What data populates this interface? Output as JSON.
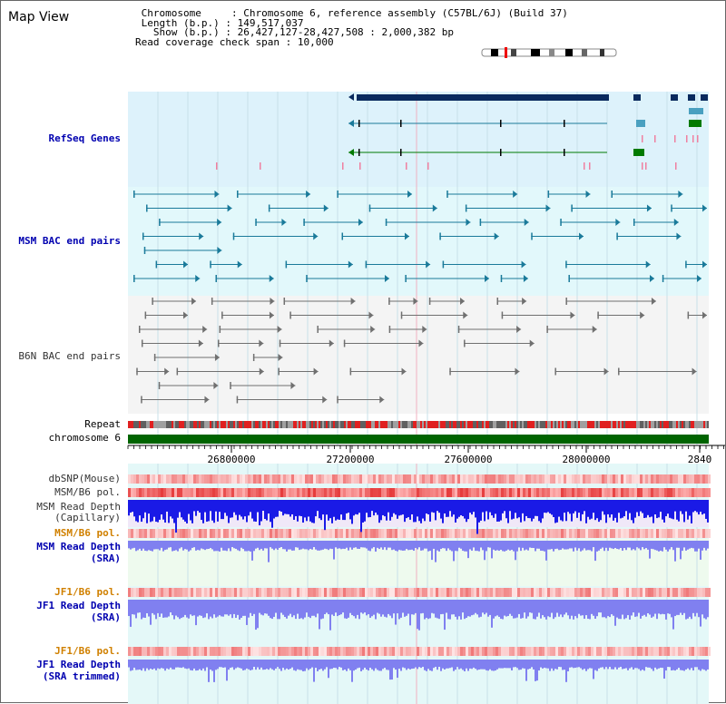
{
  "view_title": "Map View",
  "info": {
    "chromosome_label": "Chromosome",
    "chromosome_value": "Chromosome 6, reference assembly (C57BL/6J) (Build 37)",
    "length_label": "Length (b.p.)",
    "length_value": "149,517,037",
    "show_label": "Show (b.p.)",
    "show_value": "26,427,127-28,427,508 : 2,000,382 bp",
    "coverage_label": "Read coverage check span",
    "coverage_value": "10,000"
  },
  "tracks": {
    "refseq": "RefSeq Genes",
    "msm_bac": "MSM BAC end pairs",
    "b6n_bac": "B6N BAC end pairs",
    "repeat": "Repeat",
    "chromosome": "chromosome 6",
    "dbsnp": "dbSNP(Mouse)",
    "msm_b6_pol_1": "MSM/B6 pol.",
    "msm_depth_cap_1": "MSM Read Depth",
    "msm_depth_cap_2": "(Capillary)",
    "msm_b6_pol_2": "MSM/B6 pol.",
    "msm_depth_sra_1": "MSM Read Depth",
    "msm_depth_sra_2": "(SRA)",
    "jf1_b6_pol_1": "JF1/B6 pol.",
    "jf1_depth_sra_1": "JF1 Read Depth",
    "jf1_depth_sra_2": "(SRA)",
    "jf1_b6_pol_2": "JF1/B6 pol.",
    "jf1_depth_trim_1": "JF1 Read Depth",
    "jf1_depth_trim_2": "(SRA trimmed)"
  },
  "axis": {
    "ticks": [
      "26800000",
      "27200000",
      "27600000",
      "28000000",
      "2840"
    ]
  },
  "colors": {
    "refseq_bg": "#ddf2fb",
    "msm_bac_bg": "#e2f8fb",
    "b6n_bg": "#f4f4f4",
    "gene_dark": "#0a2a5e",
    "gene_teal": "#1a7a9a",
    "gene_green": "#007a00",
    "chromosome_bar": "#006400",
    "depth_blue": "#1a1ae6",
    "depth_light": "#8080f0",
    "pol_red": "#f04040"
  }
}
